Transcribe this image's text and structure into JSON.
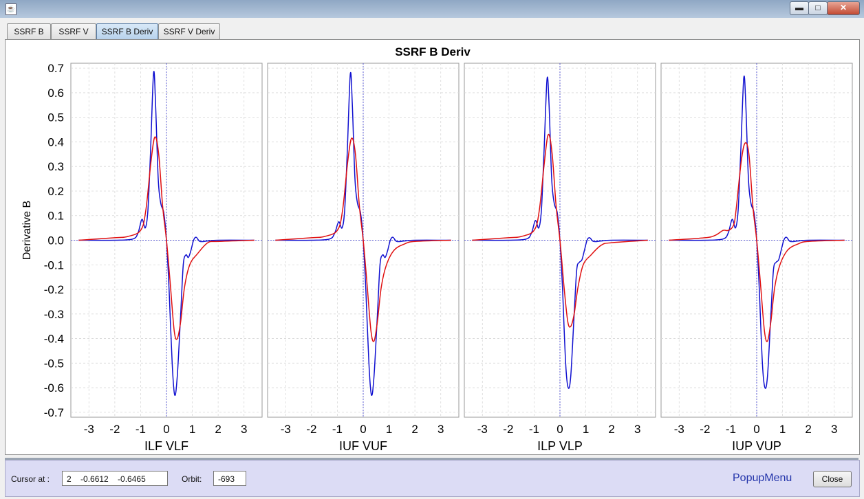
{
  "window": {
    "app_icon_name": "java-cup-icon",
    "minimize_icon": "minimize-icon",
    "maximize_icon": "maximize-icon",
    "close_icon": "close-icon",
    "minimize_glyph": "▬",
    "maximize_glyph": "□",
    "close_glyph": "✕"
  },
  "tabs": [
    {
      "label": "SSRF B",
      "active": false
    },
    {
      "label": "SSRF V",
      "active": false
    },
    {
      "label": "SSRF B Deriv",
      "active": true
    },
    {
      "label": "SSRF V Deriv",
      "active": false
    }
  ],
  "chart_data": {
    "type": "line",
    "title": "SSRF B Deriv",
    "ylabel": "Derivative B",
    "ylim": [
      -0.72,
      0.72
    ],
    "yticks": [
      0.7,
      0.6,
      0.5,
      0.4,
      0.3,
      0.2,
      0.1,
      0.0,
      -0.1,
      -0.2,
      -0.3,
      -0.4,
      -0.5,
      -0.6,
      -0.7
    ],
    "ytick_labels": [
      "0.7",
      "0.6",
      "0.5",
      "0.4",
      "0.3",
      "0.2",
      "0.1",
      "0.0",
      "-0.1",
      "-0.2",
      "-0.3",
      "-0.4",
      "-0.5",
      "-0.6",
      "-0.7"
    ],
    "xlim": [
      -3.7,
      3.7
    ],
    "xticks": [
      -3,
      -2,
      -1,
      0,
      1,
      2,
      3
    ],
    "xtick_labels": [
      "-3",
      "-2",
      "-1",
      "0",
      "1",
      "2",
      "3"
    ],
    "grid": true,
    "series_colors": {
      "blue": "#1010d0",
      "red": "#e01010"
    },
    "panels": [
      {
        "xlabel": "ILF VLF",
        "series": [
          {
            "color": "blue",
            "points": [
              [
                -3.4,
                0.0
              ],
              [
                -2.0,
                0.0
              ],
              [
                -1.3,
                0.005
              ],
              [
                -1.1,
                0.03
              ],
              [
                -0.95,
                0.085
              ],
              [
                -0.82,
                0.05
              ],
              [
                -0.72,
                0.12
              ],
              [
                -0.62,
                0.35
              ],
              [
                -0.5,
                0.68
              ],
              [
                -0.42,
                0.55
              ],
              [
                -0.32,
                0.25
              ],
              [
                -0.22,
                0.15
              ],
              [
                -0.1,
                0.11
              ],
              [
                0.0,
                0.0
              ],
              [
                0.1,
                -0.2
              ],
              [
                0.22,
                -0.5
              ],
              [
                0.32,
                -0.63
              ],
              [
                0.42,
                -0.55
              ],
              [
                0.55,
                -0.3
              ],
              [
                0.65,
                -0.1
              ],
              [
                0.75,
                -0.06
              ],
              [
                0.85,
                -0.07
              ],
              [
                0.95,
                -0.04
              ],
              [
                1.05,
                0.0
              ],
              [
                1.15,
                0.012
              ],
              [
                1.3,
                -0.005
              ],
              [
                1.6,
                -0.003
              ],
              [
                2.0,
                0.0
              ],
              [
                3.4,
                0.0
              ]
            ]
          },
          {
            "color": "red",
            "points": [
              [
                -3.4,
                0.0
              ],
              [
                -2.0,
                0.01
              ],
              [
                -1.5,
                0.015
              ],
              [
                -1.0,
                0.04
              ],
              [
                -0.8,
                0.12
              ],
              [
                -0.6,
                0.32
              ],
              [
                -0.45,
                0.42
              ],
              [
                -0.3,
                0.35
              ],
              [
                -0.15,
                0.14
              ],
              [
                0.0,
                0.0
              ],
              [
                0.15,
                -0.18
              ],
              [
                0.3,
                -0.37
              ],
              [
                0.42,
                -0.4
              ],
              [
                0.55,
                -0.33
              ],
              [
                0.7,
                -0.19
              ],
              [
                0.9,
                -0.1
              ],
              [
                1.2,
                -0.055
              ],
              [
                1.6,
                -0.01
              ],
              [
                2.0,
                -0.005
              ],
              [
                3.4,
                0.0
              ]
            ]
          }
        ]
      },
      {
        "xlabel": "IUF VUF",
        "series": [
          {
            "color": "blue",
            "points": [
              [
                -3.4,
                0.0
              ],
              [
                -2.0,
                0.0
              ],
              [
                -1.3,
                0.005
              ],
              [
                -1.1,
                0.03
              ],
              [
                -0.95,
                0.075
              ],
              [
                -0.82,
                0.05
              ],
              [
                -0.72,
                0.12
              ],
              [
                -0.62,
                0.35
              ],
              [
                -0.5,
                0.675
              ],
              [
                -0.42,
                0.55
              ],
              [
                -0.32,
                0.25
              ],
              [
                -0.22,
                0.15
              ],
              [
                -0.1,
                0.11
              ],
              [
                0.0,
                0.0
              ],
              [
                0.1,
                -0.2
              ],
              [
                0.22,
                -0.5
              ],
              [
                0.32,
                -0.63
              ],
              [
                0.42,
                -0.55
              ],
              [
                0.55,
                -0.3
              ],
              [
                0.65,
                -0.1
              ],
              [
                0.75,
                -0.06
              ],
              [
                0.85,
                -0.07
              ],
              [
                0.95,
                -0.04
              ],
              [
                1.05,
                0.0
              ],
              [
                1.15,
                0.012
              ],
              [
                1.3,
                -0.005
              ],
              [
                1.6,
                -0.003
              ],
              [
                2.0,
                0.0
              ],
              [
                3.4,
                0.0
              ]
            ]
          },
          {
            "color": "red",
            "points": [
              [
                -3.4,
                0.0
              ],
              [
                -2.0,
                0.01
              ],
              [
                -1.5,
                0.015
              ],
              [
                -1.0,
                0.04
              ],
              [
                -0.8,
                0.12
              ],
              [
                -0.6,
                0.32
              ],
              [
                -0.45,
                0.415
              ],
              [
                -0.3,
                0.35
              ],
              [
                -0.15,
                0.14
              ],
              [
                0.0,
                0.0
              ],
              [
                0.15,
                -0.18
              ],
              [
                0.3,
                -0.37
              ],
              [
                0.42,
                -0.41
              ],
              [
                0.55,
                -0.33
              ],
              [
                0.7,
                -0.19
              ],
              [
                0.9,
                -0.1
              ],
              [
                1.2,
                -0.04
              ],
              [
                1.6,
                -0.015
              ],
              [
                2.0,
                -0.005
              ],
              [
                3.4,
                0.0
              ]
            ]
          }
        ]
      },
      {
        "xlabel": "ILP VLP",
        "series": [
          {
            "color": "blue",
            "points": [
              [
                -3.4,
                0.0
              ],
              [
                -2.0,
                0.0
              ],
              [
                -1.3,
                0.005
              ],
              [
                -1.1,
                0.03
              ],
              [
                -0.95,
                0.08
              ],
              [
                -0.82,
                0.05
              ],
              [
                -0.72,
                0.12
              ],
              [
                -0.62,
                0.35
              ],
              [
                -0.5,
                0.655
              ],
              [
                -0.42,
                0.55
              ],
              [
                -0.32,
                0.25
              ],
              [
                -0.22,
                0.15
              ],
              [
                -0.1,
                0.11
              ],
              [
                0.0,
                0.0
              ],
              [
                0.1,
                -0.2
              ],
              [
                0.22,
                -0.5
              ],
              [
                0.32,
                -0.6
              ],
              [
                0.42,
                -0.55
              ],
              [
                0.55,
                -0.3
              ],
              [
                0.65,
                -0.12
              ],
              [
                0.75,
                -0.09
              ],
              [
                0.85,
                -0.08
              ],
              [
                0.95,
                -0.04
              ],
              [
                1.05,
                0.0
              ],
              [
                1.15,
                0.01
              ],
              [
                1.3,
                -0.005
              ],
              [
                1.6,
                -0.003
              ],
              [
                2.0,
                0.0
              ],
              [
                3.4,
                0.0
              ]
            ]
          },
          {
            "color": "red",
            "points": [
              [
                -3.4,
                0.0
              ],
              [
                -2.0,
                0.01
              ],
              [
                -1.5,
                0.015
              ],
              [
                -1.0,
                0.04
              ],
              [
                -0.8,
                0.12
              ],
              [
                -0.6,
                0.32
              ],
              [
                -0.45,
                0.43
              ],
              [
                -0.3,
                0.35
              ],
              [
                -0.15,
                0.14
              ],
              [
                0.0,
                0.0
              ],
              [
                0.15,
                -0.18
              ],
              [
                0.3,
                -0.33
              ],
              [
                0.42,
                -0.35
              ],
              [
                0.55,
                -0.3
              ],
              [
                0.7,
                -0.19
              ],
              [
                0.9,
                -0.1
              ],
              [
                1.2,
                -0.06
              ],
              [
                1.6,
                -0.02
              ],
              [
                2.0,
                -0.01
              ],
              [
                3.4,
                0.0
              ]
            ]
          }
        ]
      },
      {
        "xlabel": "IUP VUP",
        "series": [
          {
            "color": "blue",
            "points": [
              [
                -3.4,
                0.0
              ],
              [
                -2.0,
                0.0
              ],
              [
                -1.3,
                0.005
              ],
              [
                -1.1,
                0.03
              ],
              [
                -0.95,
                0.085
              ],
              [
                -0.82,
                0.05
              ],
              [
                -0.72,
                0.12
              ],
              [
                -0.62,
                0.35
              ],
              [
                -0.5,
                0.66
              ],
              [
                -0.42,
                0.55
              ],
              [
                -0.32,
                0.25
              ],
              [
                -0.22,
                0.15
              ],
              [
                -0.1,
                0.11
              ],
              [
                0.0,
                0.0
              ],
              [
                0.1,
                -0.2
              ],
              [
                0.22,
                -0.5
              ],
              [
                0.32,
                -0.6
              ],
              [
                0.42,
                -0.55
              ],
              [
                0.55,
                -0.3
              ],
              [
                0.65,
                -0.12
              ],
              [
                0.75,
                -0.09
              ],
              [
                0.85,
                -0.08
              ],
              [
                0.95,
                -0.04
              ],
              [
                1.05,
                0.0
              ],
              [
                1.15,
                0.012
              ],
              [
                1.3,
                -0.005
              ],
              [
                1.6,
                -0.003
              ],
              [
                2.0,
                0.0
              ],
              [
                3.4,
                0.0
              ]
            ]
          },
          {
            "color": "red",
            "points": [
              [
                -3.4,
                0.0
              ],
              [
                -2.0,
                0.01
              ],
              [
                -1.6,
                0.02
              ],
              [
                -1.3,
                0.04
              ],
              [
                -1.1,
                0.04
              ],
              [
                -0.9,
                0.06
              ],
              [
                -0.8,
                0.12
              ],
              [
                -0.6,
                0.32
              ],
              [
                -0.45,
                0.395
              ],
              [
                -0.3,
                0.35
              ],
              [
                -0.15,
                0.14
              ],
              [
                0.0,
                0.0
              ],
              [
                0.15,
                -0.18
              ],
              [
                0.3,
                -0.37
              ],
              [
                0.42,
                -0.41
              ],
              [
                0.55,
                -0.33
              ],
              [
                0.7,
                -0.19
              ],
              [
                0.9,
                -0.1
              ],
              [
                1.2,
                -0.04
              ],
              [
                1.6,
                -0.015
              ],
              [
                2.0,
                -0.005
              ],
              [
                3.4,
                0.0
              ]
            ]
          }
        ]
      }
    ]
  },
  "bottom": {
    "cursor_label": "Cursor at :",
    "cursor_value": "2    -0.6612    -0.6465",
    "orbit_label": "Orbit:",
    "orbit_value": "-693",
    "popup_menu": "PopupMenu",
    "close_button": "Close"
  }
}
